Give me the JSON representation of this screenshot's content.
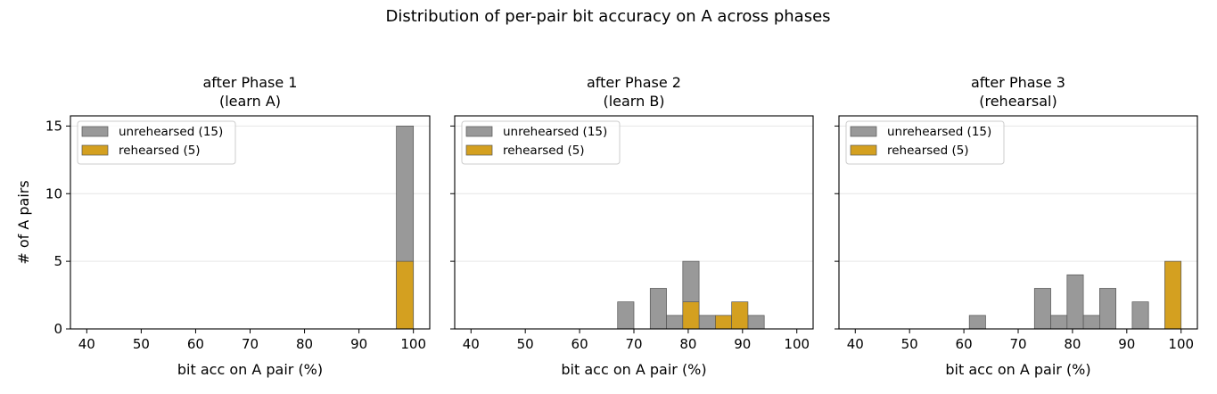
{
  "suptitle": "Distribution of per-pair bit accuracy on A across phases",
  "chart_data": [
    {
      "type": "bar",
      "title_lines": [
        "after Phase 1",
        "(learn A)"
      ],
      "xlabel": "bit acc on A pair (%)",
      "ylabel": "# of A pairs",
      "xlim": [
        37,
        103
      ],
      "ylim": [
        0,
        15.75
      ],
      "xticks": [
        40,
        50,
        60,
        70,
        80,
        90,
        100
      ],
      "yticks": [
        0,
        5,
        10,
        15
      ],
      "grid": "horizontal",
      "legend_position": "upper-left",
      "stacked": true,
      "series": [
        {
          "name": "unrehearsed (15)",
          "color": "#999999",
          "bins": [
            {
              "x0": 96.875,
              "x1": 100,
              "count": 15
            }
          ]
        },
        {
          "name": "rehearsed (5)",
          "color": "#D4A020",
          "bins": [
            {
              "x0": 96.875,
              "x1": 100,
              "count": 5
            }
          ]
        }
      ]
    },
    {
      "type": "bar",
      "title_lines": [
        "after Phase 2",
        "(learn B)"
      ],
      "xlabel": "bit acc on A pair (%)",
      "ylabel": "",
      "xlim": [
        37,
        103
      ],
      "ylim": [
        0,
        15.75
      ],
      "xticks": [
        40,
        50,
        60,
        70,
        80,
        90,
        100
      ],
      "yticks": [
        0,
        5,
        10,
        15
      ],
      "grid": "horizontal",
      "legend_position": "upper-left",
      "stacked": false,
      "series": [
        {
          "name": "unrehearsed (15)",
          "color": "#999999",
          "bins": [
            {
              "x0": 67,
              "x1": 70,
              "count": 2
            },
            {
              "x0": 73,
              "x1": 76,
              "count": 3
            },
            {
              "x0": 76,
              "x1": 79,
              "count": 1
            },
            {
              "x0": 79,
              "x1": 82,
              "count": 5
            },
            {
              "x0": 82,
              "x1": 85,
              "count": 1
            },
            {
              "x0": 85,
              "x1": 88,
              "count": 1
            },
            {
              "x0": 88,
              "x1": 91,
              "count": 1
            },
            {
              "x0": 91,
              "x1": 94,
              "count": 1
            }
          ]
        },
        {
          "name": "rehearsed (5)",
          "color": "#D4A020",
          "bins": [
            {
              "x0": 79,
              "x1": 82,
              "count": 2
            },
            {
              "x0": 85,
              "x1": 88,
              "count": 1
            },
            {
              "x0": 88,
              "x1": 91,
              "count": 2
            }
          ]
        }
      ]
    },
    {
      "type": "bar",
      "title_lines": [
        "after Phase 3",
        "(rehearsal)"
      ],
      "xlabel": "bit acc on A pair (%)",
      "ylabel": "",
      "xlim": [
        37,
        103
      ],
      "ylim": [
        0,
        15.75
      ],
      "xticks": [
        40,
        50,
        60,
        70,
        80,
        90,
        100
      ],
      "yticks": [
        0,
        5,
        10,
        15
      ],
      "grid": "horizontal",
      "legend_position": "upper-left",
      "stacked": false,
      "series": [
        {
          "name": "unrehearsed (15)",
          "color": "#999999",
          "bins": [
            {
              "x0": 61,
              "x1": 64,
              "count": 1
            },
            {
              "x0": 73,
              "x1": 76,
              "count": 3
            },
            {
              "x0": 76,
              "x1": 79,
              "count": 1
            },
            {
              "x0": 79,
              "x1": 82,
              "count": 4
            },
            {
              "x0": 82,
              "x1": 85,
              "count": 1
            },
            {
              "x0": 85,
              "x1": 88,
              "count": 3
            },
            {
              "x0": 91,
              "x1": 94,
              "count": 2
            }
          ]
        },
        {
          "name": "rehearsed (5)",
          "color": "#D4A020",
          "bins": [
            {
              "x0": 97,
              "x1": 100,
              "count": 5
            }
          ]
        }
      ]
    }
  ]
}
